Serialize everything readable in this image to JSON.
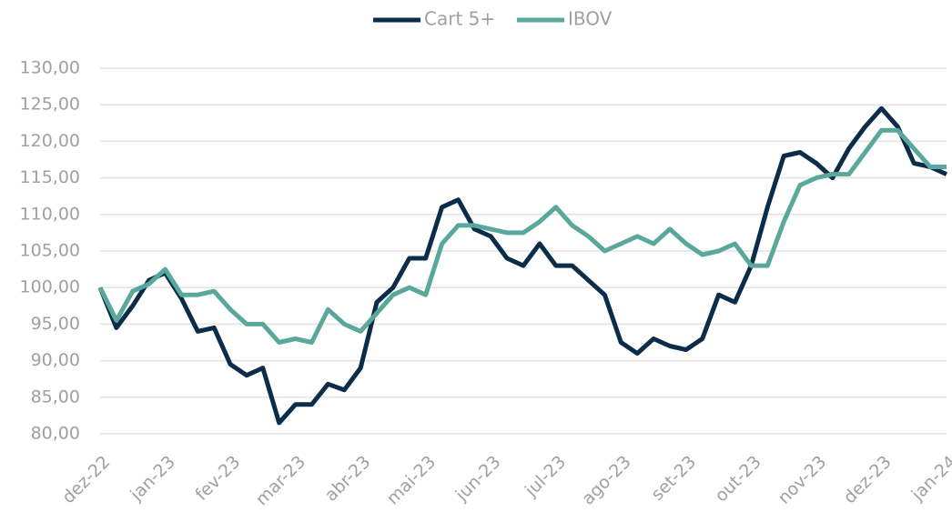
{
  "chart_data": {
    "type": "line",
    "categories": [
      "dez-22",
      null,
      null,
      null,
      "jan-23",
      null,
      null,
      null,
      "fev-23",
      null,
      null,
      null,
      "mar-23",
      null,
      null,
      null,
      "abr-23",
      null,
      null,
      null,
      "mai-23",
      null,
      null,
      null,
      "jun-23",
      null,
      null,
      null,
      "jul-23",
      null,
      null,
      null,
      "ago-23",
      null,
      null,
      null,
      "set-23",
      null,
      null,
      null,
      "out-23",
      null,
      null,
      null,
      "nov-23",
      null,
      null,
      null,
      "dez-23",
      null,
      null,
      null,
      "jan-24"
    ],
    "series": [
      {
        "name": "Cart 5+",
        "color": "#0b2d4a",
        "values": [
          100,
          94.5,
          97.5,
          101,
          102,
          98.5,
          94,
          94.5,
          89.5,
          88,
          89,
          81.5,
          84,
          84,
          86.8,
          86,
          89,
          98,
          100,
          104,
          104,
          111,
          112,
          108,
          107,
          104,
          103,
          106,
          103,
          103,
          101,
          99,
          92.5,
          91,
          93,
          92,
          91.5,
          93,
          99,
          98,
          103,
          111,
          118,
          118.5,
          117,
          115,
          119,
          122,
          124.5,
          122,
          117,
          116.5,
          115.5
        ]
      },
      {
        "name": "IBOV",
        "color": "#5aa89c",
        "values": [
          100,
          95.5,
          99.5,
          100.5,
          102.5,
          99,
          99,
          99.5,
          97,
          95,
          95,
          92.5,
          93,
          92.5,
          97,
          95,
          94,
          96.5,
          99,
          100,
          99,
          106,
          108.5,
          108.5,
          108,
          107.5,
          107.5,
          109,
          111,
          108.5,
          107,
          105,
          106,
          107,
          106,
          108,
          106,
          104.5,
          105,
          106,
          103,
          103,
          109,
          114,
          115,
          115.5,
          115.5,
          118.5,
          121.5,
          121.5,
          119,
          116.5,
          116.5
        ]
      }
    ],
    "ylim": [
      80,
      130
    ],
    "yticks": [
      {
        "value": 80,
        "label": "80,00"
      },
      {
        "value": 85,
        "label": "85,00"
      },
      {
        "value": 90,
        "label": "90,00"
      },
      {
        "value": 95,
        "label": "95,00"
      },
      {
        "value": 100,
        "label": "100,00"
      },
      {
        "value": 105,
        "label": "105,00"
      },
      {
        "value": 110,
        "label": "110,00"
      },
      {
        "value": 115,
        "label": "115,00"
      },
      {
        "value": 120,
        "label": "120,00"
      },
      {
        "value": 125,
        "label": "125,00"
      },
      {
        "value": 130,
        "label": "130,00"
      }
    ],
    "grid": true,
    "legend": "top"
  }
}
